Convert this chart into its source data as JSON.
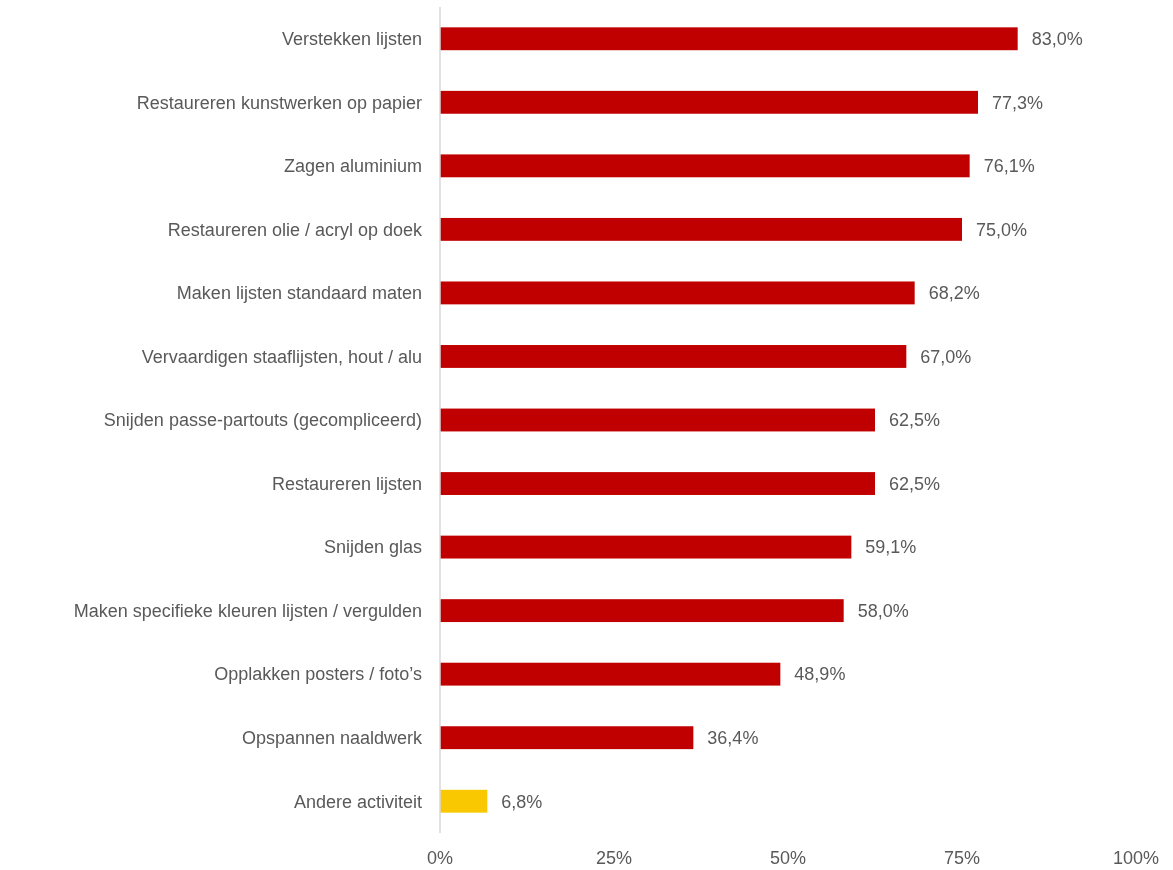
{
  "chart_data": {
    "type": "bar",
    "orientation": "horizontal",
    "categories": [
      "Verstekken lijsten",
      "Restaureren kunstwerken op papier",
      "Zagen aluminium",
      "Restaureren olie / acryl op doek",
      "Maken lijsten standaard maten",
      "Vervaardigen staaflijsten, hout / alu",
      "Snijden passe-partouts (gecompliceerd)",
      "Restaureren lijsten",
      "Snijden glas",
      "Maken specifieke kleuren lijsten / vergulden",
      "Opplakken posters / foto’s",
      "Opspannen naaldwerk",
      "Andere activiteit"
    ],
    "values": [
      83.0,
      77.3,
      76.1,
      75.0,
      68.2,
      67.0,
      62.5,
      62.5,
      59.1,
      58.0,
      48.9,
      36.4,
      6.8
    ],
    "value_labels": [
      "83,0%",
      "77,3%",
      "76,1%",
      "75,0%",
      "68,2%",
      "67,0%",
      "62,5%",
      "62,5%",
      "59,1%",
      "58,0%",
      "48,9%",
      "36,4%",
      "6,8%"
    ],
    "colors": [
      "#c00000",
      "#c00000",
      "#c00000",
      "#c00000",
      "#c00000",
      "#c00000",
      "#c00000",
      "#c00000",
      "#c00000",
      "#c00000",
      "#c00000",
      "#c00000",
      "#fac800"
    ],
    "xlim": [
      0,
      100
    ],
    "xticks": [
      {
        "value": 0,
        "label": "0%"
      },
      {
        "value": 25,
        "label": "25%"
      },
      {
        "value": 50,
        "label": "50%"
      },
      {
        "value": 75,
        "label": "75%"
      },
      {
        "value": 100,
        "label": "100%"
      }
    ],
    "grid": false
  }
}
